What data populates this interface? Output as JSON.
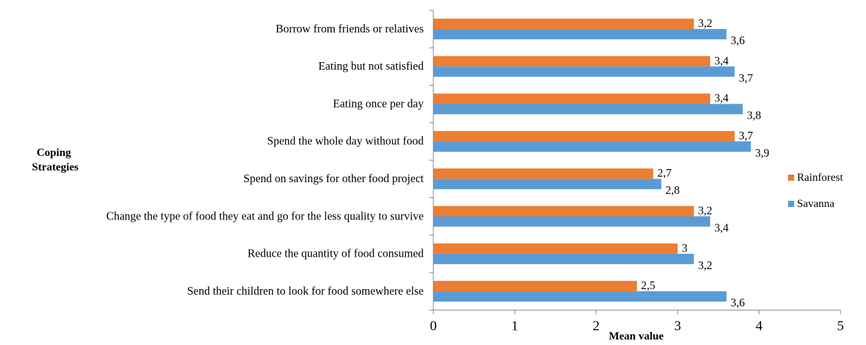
{
  "chart_data": {
    "type": "bar",
    "orientation": "horizontal",
    "title": "",
    "xlabel": "Mean value",
    "ylabel": "Coping Strategies",
    "xlim": [
      0,
      5
    ],
    "xticks": [
      "0",
      "1",
      "2",
      "3",
      "4",
      "5"
    ],
    "grid": false,
    "legend_position": "right",
    "categories": [
      "Borrow from friends or relatives",
      "Eating but not satisfied",
      "Eating once per day",
      "Spend the whole day without food",
      "Spend on savings for other food project",
      "Change the type of food they eat and go for the less quality to survive",
      "Reduce the quantity of food consumed",
      "Send their children to look for food somewhere else"
    ],
    "series": [
      {
        "name": "Rainforest",
        "color": "#ED7D31",
        "values": [
          3.2,
          3.4,
          3.4,
          3.7,
          2.7,
          3.2,
          3.0,
          2.5
        ],
        "labels": [
          "3,2",
          "3,4",
          "3,4",
          "3,7",
          "2,7",
          "3,2",
          "3",
          "2,5"
        ]
      },
      {
        "name": "Savanna",
        "color": "#5B9BD5",
        "values": [
          3.6,
          3.7,
          3.8,
          3.9,
          2.8,
          3.4,
          3.2,
          3.6
        ],
        "labels": [
          "3,6",
          "3,7",
          "3,8",
          "3,9",
          "2,8",
          "3,4",
          "3,2",
          "3,6"
        ]
      }
    ]
  }
}
